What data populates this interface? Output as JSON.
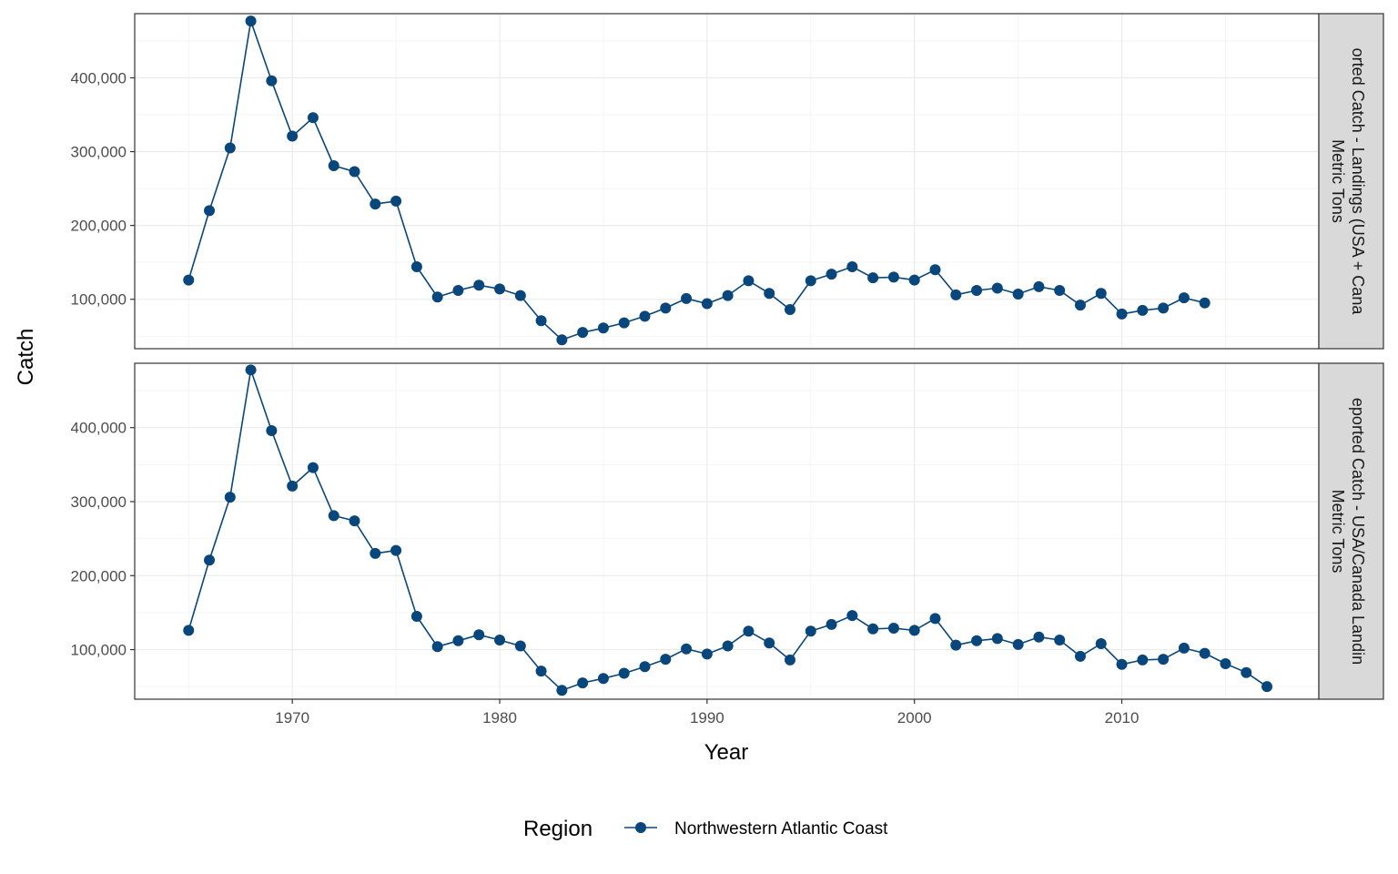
{
  "colors": {
    "series": "#08467C",
    "grid_major": "#EBEBEB",
    "grid_minor": "#F5F5F5",
    "panel_border": "#333333",
    "strip_bg": "#D9D9D9"
  },
  "chart_data": {
    "type": "line",
    "xlabel": "Year",
    "ylabel": "Catch",
    "xlim": [
      1962.4,
      2019.5
    ],
    "x_ticks": [
      1970,
      1980,
      1990,
      2000,
      2010
    ],
    "ylim": [
      33000,
      487000
    ],
    "y_ticks": [
      100000,
      200000,
      300000,
      400000
    ],
    "grid": true,
    "legend": {
      "position": "bottom",
      "title": "Region",
      "entries": [
        "Northwestern Atlantic Coast"
      ]
    },
    "panels": [
      {
        "strip_label_lines": [
          "orted Catch - Landings (USA + Cana",
          "Metric Tons"
        ],
        "series": [
          {
            "name": "Northwestern Atlantic Coast",
            "x": [
              1965,
              1966,
              1967,
              1968,
              1969,
              1970,
              1971,
              1972,
              1973,
              1974,
              1975,
              1976,
              1977,
              1978,
              1979,
              1980,
              1981,
              1982,
              1983,
              1984,
              1985,
              1986,
              1987,
              1988,
              1989,
              1990,
              1991,
              1992,
              1993,
              1994,
              1995,
              1996,
              1997,
              1998,
              1999,
              2000,
              2001,
              2002,
              2003,
              2004,
              2005,
              2006,
              2007,
              2008,
              2009,
              2010,
              2011,
              2012,
              2013,
              2014
            ],
            "values": [
              126000,
              220000,
              305000,
              477000,
              396000,
              321000,
              346000,
              281000,
              273000,
              229000,
              233000,
              144000,
              103000,
              112000,
              119000,
              114000,
              105000,
              71000,
              45000,
              55000,
              61000,
              68000,
              77000,
              88000,
              101000,
              94000,
              105000,
              125000,
              108000,
              86000,
              125000,
              134000,
              144000,
              129000,
              130000,
              126000,
              140000,
              106000,
              112000,
              115000,
              107000,
              117000,
              112000,
              92000,
              108000,
              80000,
              85000,
              88000,
              102000,
              95000
            ]
          }
        ]
      },
      {
        "strip_label_lines": [
          "eported Catch - USA/Canada Landin",
          "Metric Tons"
        ],
        "series": [
          {
            "name": "Northwestern Atlantic Coast",
            "x": [
              1965,
              1966,
              1967,
              1968,
              1969,
              1970,
              1971,
              1972,
              1973,
              1974,
              1975,
              1976,
              1977,
              1978,
              1979,
              1980,
              1981,
              1982,
              1983,
              1984,
              1985,
              1986,
              1987,
              1988,
              1989,
              1990,
              1991,
              1992,
              1993,
              1994,
              1995,
              1996,
              1997,
              1998,
              1999,
              2000,
              2001,
              2002,
              2003,
              2004,
              2005,
              2006,
              2007,
              2008,
              2009,
              2010,
              2011,
              2012,
              2013,
              2014,
              2015,
              2016,
              2017
            ],
            "values": [
              126000,
              221000,
              306000,
              478000,
              396000,
              321000,
              346000,
              281000,
              274000,
              230000,
              234000,
              145000,
              104000,
              112000,
              120000,
              113000,
              105000,
              71000,
              45000,
              55000,
              61000,
              68000,
              77000,
              87000,
              101000,
              94000,
              105000,
              125000,
              109000,
              86000,
              125000,
              134000,
              146000,
              128000,
              129000,
              126000,
              142000,
              106000,
              112000,
              115000,
              107000,
              117000,
              113000,
              91000,
              108000,
              80000,
              86000,
              87000,
              102000,
              95000,
              81000,
              69000,
              50000
            ]
          }
        ]
      }
    ]
  }
}
